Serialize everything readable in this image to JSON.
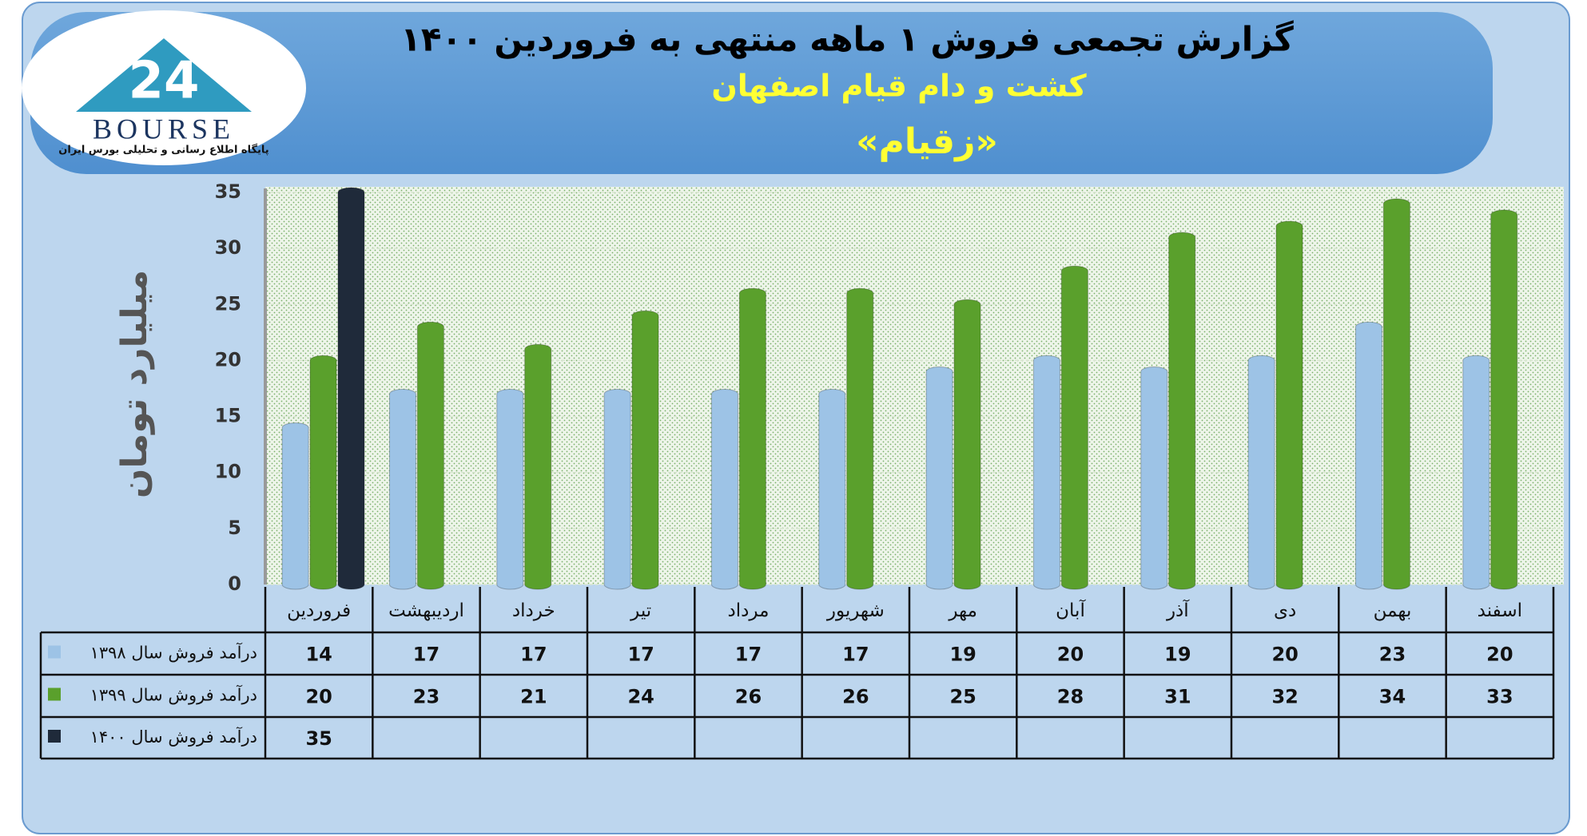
{
  "logo": {
    "mark": "24",
    "name": "BOURSE",
    "tagline": "پایگاه اطلاع رسانی و تحلیلی بورس ایران"
  },
  "chart_data": {
    "type": "bar",
    "title": "گزارش تجمعی فروش ۱ ماهه منتهی به فروردین ۱۴۰۰",
    "subtitle": "کشت و دام قیام اصفهان",
    "symbol": "«زقیام»",
    "y_label": "میلیارد تومان",
    "categories": [
      "فروردین",
      "اردیبهشت",
      "خرداد",
      "تیر",
      "مرداد",
      "شهریور",
      "مهر",
      "آبان",
      "آذر",
      "دی",
      "بهمن",
      "اسفند"
    ],
    "series": [
      {
        "name": "درآمد فروش سال ۱۳۹۸",
        "color": "#9dc3e6",
        "values": [
          14,
          17,
          17,
          17,
          17,
          17,
          19,
          20,
          19,
          20,
          23,
          20
        ]
      },
      {
        "name": "درآمد فروش سال ۱۳۹۹",
        "color": "#5aa02c",
        "values": [
          20,
          23,
          21,
          24,
          26,
          26,
          25,
          28,
          31,
          32,
          34,
          33
        ]
      },
      {
        "name": "درآمد فروش سال ۱۴۰۰",
        "color": "#1f2a3a",
        "values": [
          35,
          null,
          null,
          null,
          null,
          null,
          null,
          null,
          null,
          null,
          null,
          null
        ]
      }
    ],
    "ylim": [
      0,
      35
    ],
    "yticks": [
      0,
      5,
      10,
      15,
      20,
      25,
      30,
      35
    ],
    "grid": true
  }
}
